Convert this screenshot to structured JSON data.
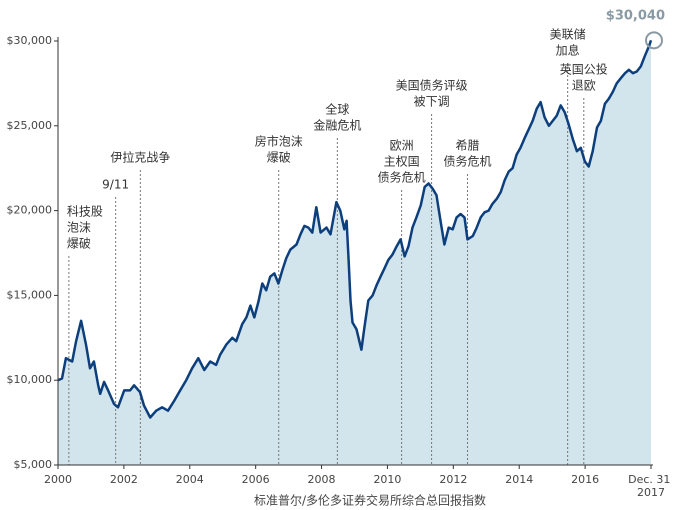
{
  "chart_data": {
    "type": "area",
    "x_label": "标准普尔/多伦多证券交易所综合总回报指数",
    "color": "#0d3f7d",
    "fill": "#d2e4ec",
    "xlim": [
      2000,
      2018
    ],
    "ylim": [
      5000,
      30000
    ],
    "xticks": [
      2000,
      2002,
      2004,
      2006,
      2008,
      2010,
      2012,
      2014,
      2016,
      {
        "value": 2018,
        "label": "Dec. 31 2017"
      }
    ],
    "yticks": [
      {
        "value": 5000,
        "label": "$5,000"
      },
      {
        "value": 10000,
        "label": "$10,000"
      },
      {
        "value": 15000,
        "label": "$15,000"
      },
      {
        "value": 20000,
        "label": "$20,000"
      },
      {
        "value": 25000,
        "label": "$25,000"
      },
      {
        "value": 30000,
        "label": "$30,000"
      }
    ],
    "end_label": "$30,040",
    "x": [
      2000.0,
      2000.12,
      2000.24,
      2000.43,
      2000.55,
      2000.7,
      2000.85,
      2000.97,
      2001.09,
      2001.22,
      2001.28,
      2001.4,
      2001.52,
      2001.7,
      2001.82,
      2002.01,
      2002.19,
      2002.31,
      2002.49,
      2002.61,
      2002.8,
      2002.98,
      2003.16,
      2003.34,
      2003.53,
      2003.71,
      2003.89,
      2004.07,
      2004.26,
      2004.44,
      2004.62,
      2004.8,
      2004.92,
      2005.11,
      2005.29,
      2005.41,
      2005.59,
      2005.72,
      2005.84,
      2005.96,
      2006.08,
      2006.2,
      2006.32,
      2006.44,
      2006.57,
      2006.69,
      2006.81,
      2006.93,
      2007.05,
      2007.24,
      2007.36,
      2007.48,
      2007.6,
      2007.72,
      2007.84,
      2007.97,
      2008.15,
      2008.27,
      2008.45,
      2008.57,
      2008.69,
      2008.76,
      2008.82,
      2008.88,
      2008.94,
      2009.06,
      2009.21,
      2009.3,
      2009.42,
      2009.55,
      2009.67,
      2009.79,
      2009.91,
      2010.03,
      2010.15,
      2010.28,
      2010.4,
      2010.52,
      2010.64,
      2010.76,
      2010.88,
      2011.01,
      2011.13,
      2011.25,
      2011.37,
      2011.49,
      2011.61,
      2011.73,
      2011.86,
      2011.98,
      2012.1,
      2012.22,
      2012.34,
      2012.43,
      2012.59,
      2012.71,
      2012.83,
      2012.95,
      2013.07,
      2013.19,
      2013.32,
      2013.44,
      2013.56,
      2013.68,
      2013.8,
      2013.92,
      2014.04,
      2014.17,
      2014.29,
      2014.41,
      2014.53,
      2014.65,
      2014.77,
      2014.9,
      2015.02,
      2015.14,
      2015.26,
      2015.38,
      2015.5,
      2015.63,
      2015.75,
      2015.87,
      2015.99,
      2016.11,
      2016.23,
      2016.36,
      2016.48,
      2016.6,
      2016.72,
      2016.84,
      2016.96,
      2017.08,
      2017.21,
      2017.33,
      2017.45,
      2017.57,
      2017.69,
      2017.81,
      2017.94,
      2018.0
    ],
    "values": [
      10000,
      10100,
      11300,
      11100,
      12300,
      13500,
      12100,
      10700,
      11100,
      9700,
      9200,
      9900,
      9400,
      8600,
      8400,
      9400,
      9400,
      9700,
      9300,
      8500,
      7800,
      8200,
      8400,
      8200,
      8800,
      9400,
      10000,
      10700,
      11300,
      10600,
      11100,
      10900,
      11500,
      12100,
      12500,
      12300,
      13300,
      13700,
      14400,
      13700,
      14600,
      15700,
      15300,
      16100,
      16300,
      15700,
      16500,
      17200,
      17700,
      18000,
      18600,
      19100,
      19000,
      18700,
      20200,
      18700,
      19000,
      18600,
      20500,
      20000,
      18900,
      19400,
      17100,
      14700,
      13400,
      13000,
      11800,
      13100,
      14700,
      15000,
      15600,
      16100,
      16600,
      17100,
      17400,
      17900,
      18300,
      17300,
      17900,
      19000,
      19600,
      20300,
      21400,
      21600,
      21300,
      20900,
      19400,
      18000,
      19000,
      18900,
      19600,
      19800,
      19600,
      18300,
      18500,
      19000,
      19600,
      19900,
      20000,
      20400,
      20700,
      21100,
      21800,
      22300,
      22500,
      23300,
      23700,
      24300,
      24800,
      25300,
      26000,
      26400,
      25500,
      25000,
      25300,
      25600,
      26200,
      25800,
      25100,
      24200,
      23500,
      23700,
      22900,
      22600,
      23500,
      24900,
      25300,
      26300,
      26600,
      27000,
      27500,
      27800,
      28100,
      28300,
      28100,
      28200,
      28500,
      29100,
      29700,
      30040
    ],
    "annotations": [
      {
        "x": 2000.33,
        "lines": [
          "科技股",
          "泡沫",
          "爆破"
        ]
      },
      {
        "x": 2001.75,
        "lines": [
          "9/11"
        ]
      },
      {
        "x": 2002.5,
        "lines": [
          "伊拉克战争"
        ]
      },
      {
        "x": 2006.7,
        "lines": [
          "房市泡沫",
          "爆破"
        ]
      },
      {
        "x": 2008.48,
        "lines": [
          "全球",
          "金融危机"
        ]
      },
      {
        "x": 2010.43,
        "lines": [
          "欧洲",
          "主权国",
          "债务危机"
        ]
      },
      {
        "x": 2011.34,
        "lines": [
          "美国债务评级",
          "被下调"
        ]
      },
      {
        "x": 2012.43,
        "lines": [
          "希腊",
          "债务危机"
        ]
      },
      {
        "x": 2015.47,
        "lines": [
          "美联储",
          "加息"
        ]
      },
      {
        "x": 2015.96,
        "lines": [
          "英国公投",
          "退欧"
        ]
      }
    ]
  }
}
